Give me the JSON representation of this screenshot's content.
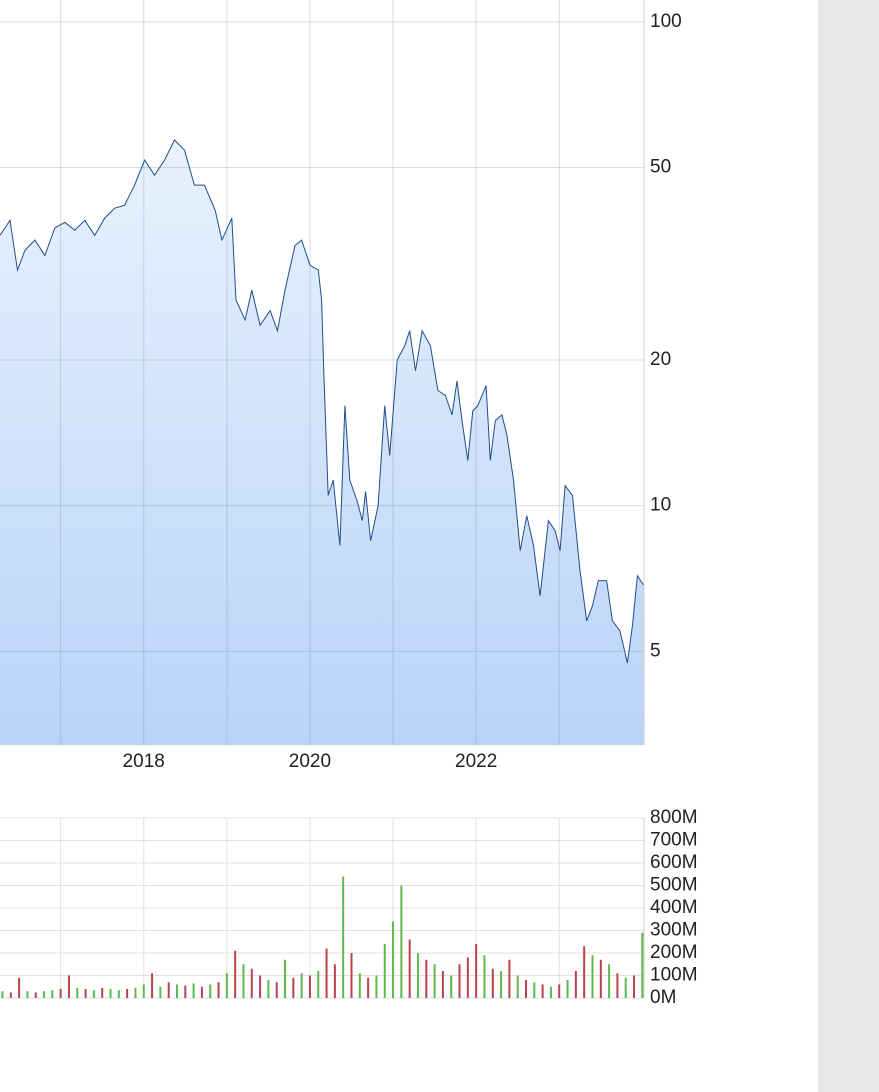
{
  "chart_data": [
    {
      "type": "area",
      "yscale": "log",
      "color": "#1f4e8c",
      "fill": [
        "#e9f2fd",
        "#b9d3f8"
      ],
      "grid": true,
      "xlim": [
        2016.27,
        2024.02
      ],
      "xticks": [
        2018,
        2020,
        2022
      ],
      "xgridlines": [
        2017,
        2019,
        2021,
        2023
      ],
      "ylim": [
        3.2,
        111
      ],
      "yticks": [
        100,
        50,
        20,
        10,
        5
      ],
      "x": [
        2016.27,
        2016.39,
        2016.48,
        2016.57,
        2016.69,
        2016.81,
        2016.93,
        2017.05,
        2017.17,
        2017.29,
        2017.41,
        2017.53,
        2017.65,
        2017.77,
        2017.89,
        2018.01,
        2018.13,
        2018.25,
        2018.37,
        2018.49,
        2018.61,
        2018.73,
        2018.86,
        2018.94,
        2019.06,
        2019.11,
        2019.22,
        2019.3,
        2019.4,
        2019.52,
        2019.61,
        2019.7,
        2019.82,
        2019.9,
        2020.0,
        2020.1,
        2020.14,
        2020.17,
        2020.22,
        2020.28,
        2020.36,
        2020.42,
        2020.48,
        2020.57,
        2020.63,
        2020.67,
        2020.73,
        2020.82,
        2020.9,
        2020.96,
        2021.05,
        2021.14,
        2021.2,
        2021.27,
        2021.35,
        2021.45,
        2021.54,
        2021.63,
        2021.71,
        2021.77,
        2021.83,
        2021.9,
        2021.96,
        2022.02,
        2022.12,
        2022.17,
        2022.23,
        2022.31,
        2022.37,
        2022.45,
        2022.53,
        2022.61,
        2022.69,
        2022.77,
        2022.87,
        2022.95,
        2023.01,
        2023.07,
        2023.16,
        2023.25,
        2023.33,
        2023.4,
        2023.47,
        2023.57,
        2023.64,
        2023.73,
        2023.82,
        2023.88,
        2023.94,
        2024.02
      ],
      "values": [
        36.2,
        38.9,
        30.7,
        33.7,
        35.4,
        32.9,
        37.5,
        38.5,
        37.1,
        38.9,
        36.2,
        39.3,
        41.2,
        41.8,
        46.0,
        51.8,
        48.2,
        51.8,
        57.0,
        54.3,
        46.0,
        46.0,
        40.8,
        35.4,
        39.3,
        26.6,
        24.2,
        27.9,
        23.6,
        25.3,
        23.0,
        27.9,
        34.5,
        35.4,
        31.4,
        30.7,
        26.6,
        18.1,
        10.5,
        11.3,
        8.27,
        16.1,
        11.3,
        10.2,
        9.31,
        10.7,
        8.46,
        10.0,
        16.1,
        12.7,
        20.0,
        21.4,
        23.0,
        19.0,
        23.0,
        21.4,
        17.3,
        16.9,
        15.4,
        18.1,
        15.0,
        12.4,
        15.7,
        16.1,
        17.7,
        12.4,
        15.0,
        15.4,
        14.0,
        11.3,
        8.07,
        9.53,
        8.27,
        6.51,
        9.31,
        8.88,
        8.07,
        11.0,
        10.5,
        7.34,
        5.78,
        6.21,
        7.0,
        7.0,
        5.78,
        5.51,
        4.73,
        5.64,
        7.16,
        6.83
      ]
    },
    {
      "type": "bar",
      "grid": true,
      "xlim": [
        2016.27,
        2024.02
      ],
      "xgridlines": [
        2017,
        2018,
        2019,
        2020,
        2021,
        2022,
        2023
      ],
      "ylim": [
        0,
        800
      ],
      "yticks": [
        {
          "value": 800,
          "label": "800M"
        },
        {
          "value": 700,
          "label": "700M"
        },
        {
          "value": 600,
          "label": "600M"
        },
        {
          "value": 500,
          "label": "500M"
        },
        {
          "value": 400,
          "label": "400M"
        },
        {
          "value": 300,
          "label": "300M"
        },
        {
          "value": 200,
          "label": "200M"
        },
        {
          "value": 100,
          "label": "100M"
        },
        {
          "value": 0,
          "label": "0M"
        }
      ],
      "x": [
        2016.3,
        2016.4,
        2016.5,
        2016.6,
        2016.7,
        2016.8,
        2016.9,
        2017.0,
        2017.1,
        2017.2,
        2017.3,
        2017.4,
        2017.5,
        2017.6,
        2017.7,
        2017.8,
        2017.9,
        2018.0,
        2018.1,
        2018.2,
        2018.3,
        2018.4,
        2018.5,
        2018.6,
        2018.7,
        2018.8,
        2018.9,
        2019.0,
        2019.1,
        2019.2,
        2019.3,
        2019.4,
        2019.5,
        2019.6,
        2019.7,
        2019.8,
        2019.9,
        2020.0,
        2020.1,
        2020.2,
        2020.3,
        2020.4,
        2020.5,
        2020.6,
        2020.7,
        2020.8,
        2020.9,
        2021.0,
        2021.1,
        2021.2,
        2021.3,
        2021.4,
        2021.5,
        2021.6,
        2021.7,
        2021.8,
        2021.9,
        2022.0,
        2022.1,
        2022.2,
        2022.3,
        2022.4,
        2022.5,
        2022.6,
        2022.7,
        2022.8,
        2022.9,
        2023.0,
        2023.1,
        2023.2,
        2023.3,
        2023.4,
        2023.5,
        2023.6,
        2023.7,
        2023.8,
        2023.9,
        2024.0
      ],
      "values": [
        30,
        25,
        90,
        30,
        25,
        30,
        35,
        40,
        100,
        45,
        40,
        35,
        45,
        40,
        35,
        40,
        45,
        60,
        110,
        50,
        70,
        60,
        55,
        65,
        50,
        60,
        70,
        110,
        210,
        150,
        130,
        100,
        80,
        70,
        170,
        90,
        110,
        100,
        120,
        220,
        150,
        540,
        200,
        110,
        90,
        100,
        240,
        340,
        500,
        260,
        200,
        170,
        150,
        120,
        100,
        150,
        180,
        240,
        190,
        130,
        120,
        170,
        100,
        80,
        70,
        60,
        50,
        60,
        80,
        120,
        230,
        190,
        170,
        150,
        110,
        90,
        100,
        290
      ],
      "colors": [
        "#5fb84a",
        "#b8434b",
        "#b8434b",
        "#5fb84a",
        "#b8434b",
        "#5fb84a",
        "#5fb84a",
        "#b8434b",
        "#b8434b",
        "#5fb84a",
        "#b8434b",
        "#5fb84a",
        "#b8434b",
        "#5fb84a",
        "#5fb84a",
        "#b8434b",
        "#5fb84a",
        "#5fb84a",
        "#b8434b",
        "#5fb84a",
        "#b8434b",
        "#5fb84a",
        "#b8434b",
        "#5fb84a",
        "#b8434b",
        "#5fb84a",
        "#b8434b",
        "#5fb84a",
        "#b8434b",
        "#5fb84a",
        "#b8434b",
        "#b8434b",
        "#5fb84a",
        "#b8434b",
        "#5fb84a",
        "#b8434b",
        "#5fb84a",
        "#b8434b",
        "#5fb84a",
        "#b8434b",
        "#b8434b",
        "#5fb84a",
        "#b8434b",
        "#5fb84a",
        "#b8434b",
        "#5fb84a",
        "#5fb84a",
        "#5fb84a",
        "#5fb84a",
        "#b8434b",
        "#5fb84a",
        "#b8434b",
        "#5fb84a",
        "#b8434b",
        "#5fb84a",
        "#b8434b",
        "#b8434b",
        "#b8434b",
        "#5fb84a",
        "#b8434b",
        "#5fb84a",
        "#b8434b",
        "#5fb84a",
        "#b8434b",
        "#5fb84a",
        "#b8434b",
        "#5fb84a",
        "#b8434b",
        "#5fb84a",
        "#b8434b",
        "#b8434b",
        "#5fb84a",
        "#b8434b",
        "#5fb84a",
        "#b8434b",
        "#5fb84a",
        "#b8434b",
        "#5fb84a"
      ]
    }
  ]
}
